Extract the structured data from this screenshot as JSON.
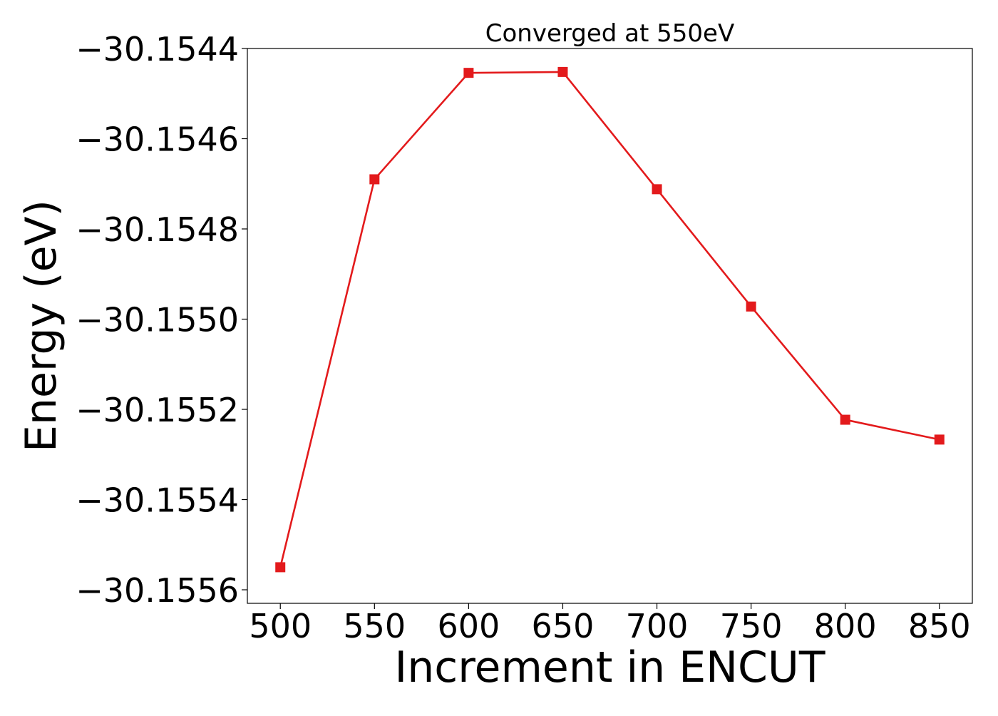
{
  "chart_data": {
    "type": "line",
    "title": "Converged at 550eV",
    "xlabel": "Increment in ENCUT",
    "ylabel": "Energy (eV)",
    "x": [
      500,
      550,
      600,
      650,
      700,
      750,
      800,
      850
    ],
    "series": [
      {
        "values": [
          -30.15555,
          -30.15469,
          -30.154454,
          -30.154452,
          -30.154712,
          -30.154972,
          -30.155223,
          -30.155267
        ],
        "color": "#e31a1c",
        "marker": "square"
      }
    ],
    "xlim": [
      482.5,
      867.5
    ],
    "ylim": [
      -30.15563,
      -30.1544
    ],
    "xticks": [
      500,
      550,
      600,
      650,
      700,
      750,
      800,
      850
    ],
    "xtick_labels": [
      "500",
      "550",
      "600",
      "650",
      "700",
      "750",
      "800",
      "850"
    ],
    "yticks": [
      -30.1544,
      -30.1546,
      -30.1548,
      -30.155,
      -30.1552,
      -30.1554,
      -30.1556
    ],
    "ytick_labels": [
      "−30.1544",
      "−30.1546",
      "−30.1548",
      "−30.1550",
      "−30.1552",
      "−30.1554",
      "−30.1556"
    ],
    "grid": false,
    "legend": "none"
  }
}
